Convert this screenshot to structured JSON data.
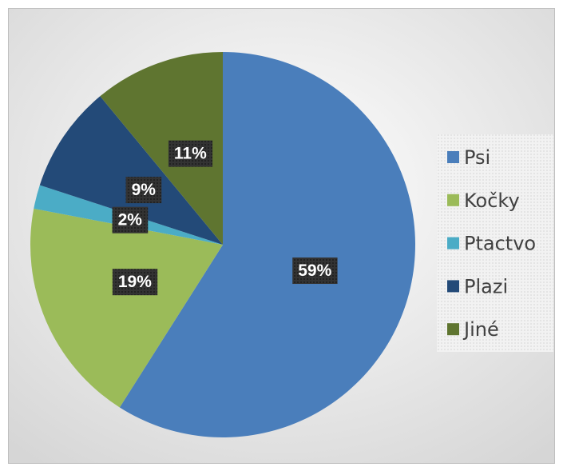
{
  "chart_data": {
    "type": "pie",
    "categories": [
      "Psi",
      "Kočky",
      "Ptactvo",
      "Plazi",
      "Jiné"
    ],
    "values": [
      59,
      19,
      2,
      9,
      11
    ],
    "value_labels": [
      "59%",
      "19%",
      "2%",
      "9%",
      "11%"
    ],
    "colors": [
      "#4a7ebb",
      "#9bbb59",
      "#4bacc6",
      "#234a78",
      "#5f7530"
    ],
    "legend": "right"
  }
}
